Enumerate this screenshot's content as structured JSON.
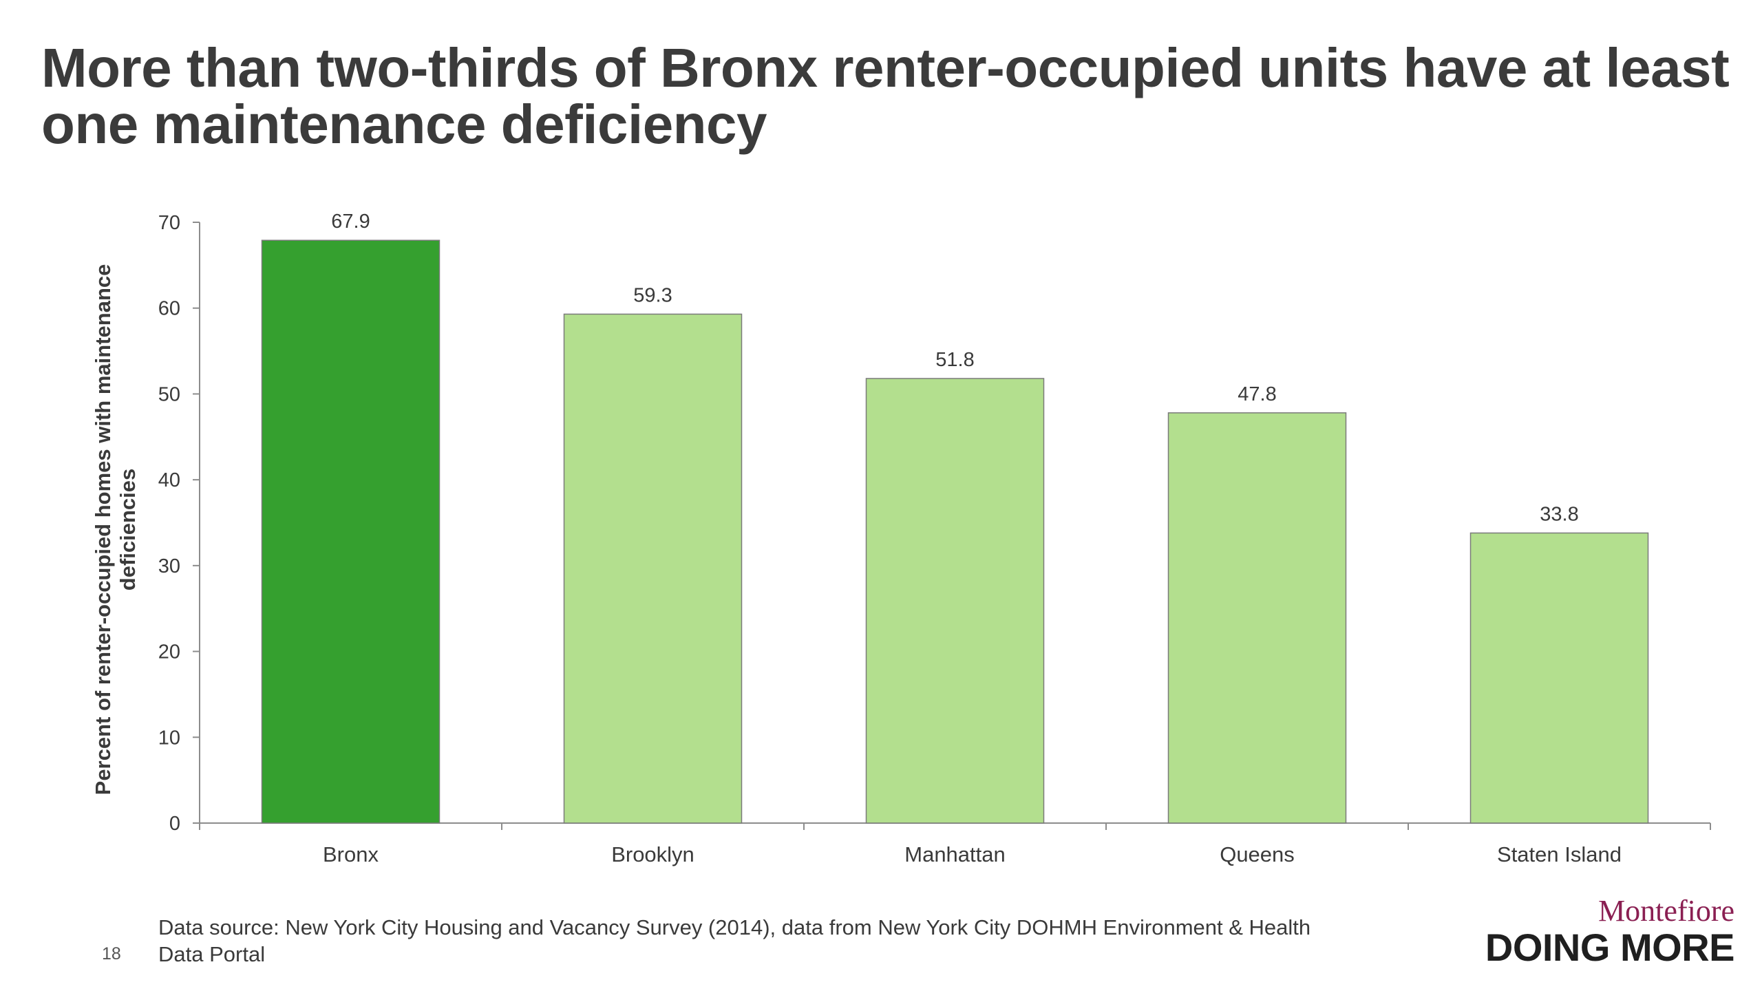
{
  "slide": {
    "title": "More than two-thirds of Bronx renter-occupied units have at least one maintenance deficiency",
    "source": "Data source: New York City Housing and Vacancy Survey (2014), data from New York City DOHMH Environment & Health Data Portal",
    "page_number": "18"
  },
  "logo": {
    "top": "Montefiore",
    "bottom": "DOING MORE"
  },
  "colors": {
    "highlight_bar": "#35a02f",
    "normal_bar": "#b3df8e",
    "text": "#3a3a3a",
    "axis": "#8c8c8c"
  },
  "chart_data": {
    "type": "bar",
    "categories": [
      "Bronx",
      "Brooklyn",
      "Manhattan",
      "Queens",
      "Staten Island"
    ],
    "values": [
      67.9,
      59.3,
      51.8,
      47.8,
      33.8
    ],
    "data_labels": [
      "67.9",
      "59.3",
      "51.8",
      "47.8",
      "33.8"
    ],
    "highlight_index": 0,
    "xlabel": "",
    "ylabel": "Percent of renter-occupied homes with maintenance deficiencies",
    "ylim": [
      0,
      70
    ],
    "yticks": [
      0,
      10,
      20,
      30,
      40,
      50,
      60,
      70
    ],
    "grid": false,
    "legend": "none"
  }
}
